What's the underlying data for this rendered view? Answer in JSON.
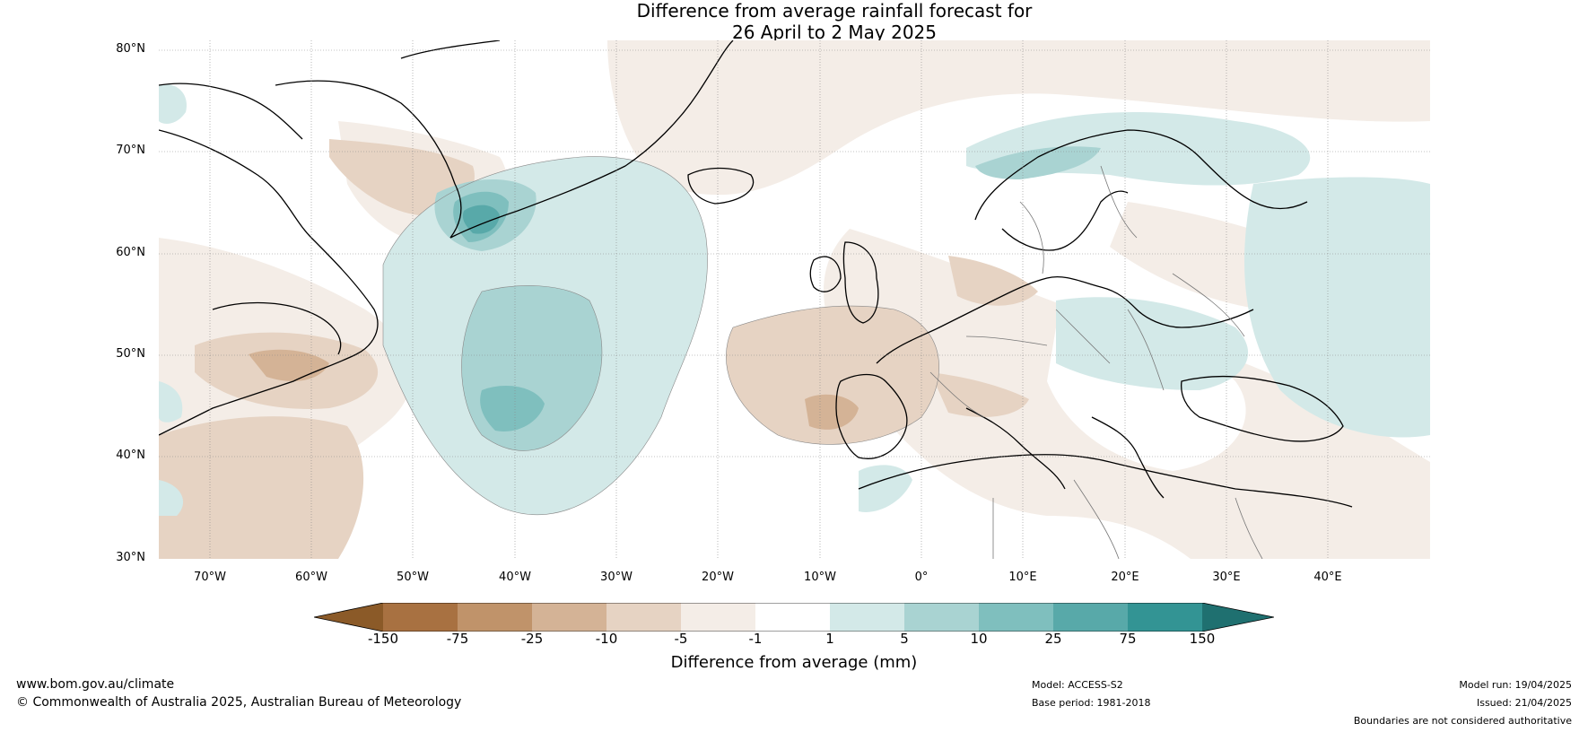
{
  "title": {
    "line1": "Difference from average rainfall forecast for",
    "line2": "26 April to 2 May 2025"
  },
  "map": {
    "lat_labels": [
      "80°N",
      "70°N",
      "60°N",
      "50°N",
      "40°N",
      "30°N"
    ],
    "lon_labels": [
      "70°W",
      "60°W",
      "50°W",
      "40°W",
      "30°W",
      "20°W",
      "10°W",
      "0°",
      "10°E",
      "20°E",
      "30°E",
      "40°E"
    ],
    "extent": {
      "lon_min": -75,
      "lon_max": 50,
      "lat_min": 30,
      "lat_max": 81
    }
  },
  "legend": {
    "title": "Difference from average (mm)",
    "tick_labels": [
      "-150",
      "-75",
      "-25",
      "-10",
      "-5",
      "-1",
      "1",
      "5",
      "10",
      "25",
      "75",
      "150"
    ],
    "colors": {
      "below_150": "#8b5a28",
      "m150_m75": "#a87141",
      "m75_m25": "#c0936a",
      "m25_m10": "#d4b396",
      "m10_m5": "#e6d3c3",
      "m5_m1": "#f4ede7",
      "m1_1": "#ffffff",
      "p1_5": "#d3e9e8",
      "p5_10": "#a9d3d2",
      "p10_25": "#7fbfbe",
      "p25_75": "#58a9a9",
      "p75_150": "#339494",
      "above_150": "#1f7070"
    }
  },
  "footer": {
    "website": "www.bom.gov.au/climate",
    "copyright": "© Commonwealth of Australia 2025, Australian Bureau of Meteorology",
    "model": "Model: ACCESS-S2",
    "base_period": "Base period: 1981-2018",
    "model_run": "Model run: 19/04/2025",
    "issued": "Issued: 21/04/2025",
    "disclaimer": "Boundaries are not considered authoritative"
  }
}
